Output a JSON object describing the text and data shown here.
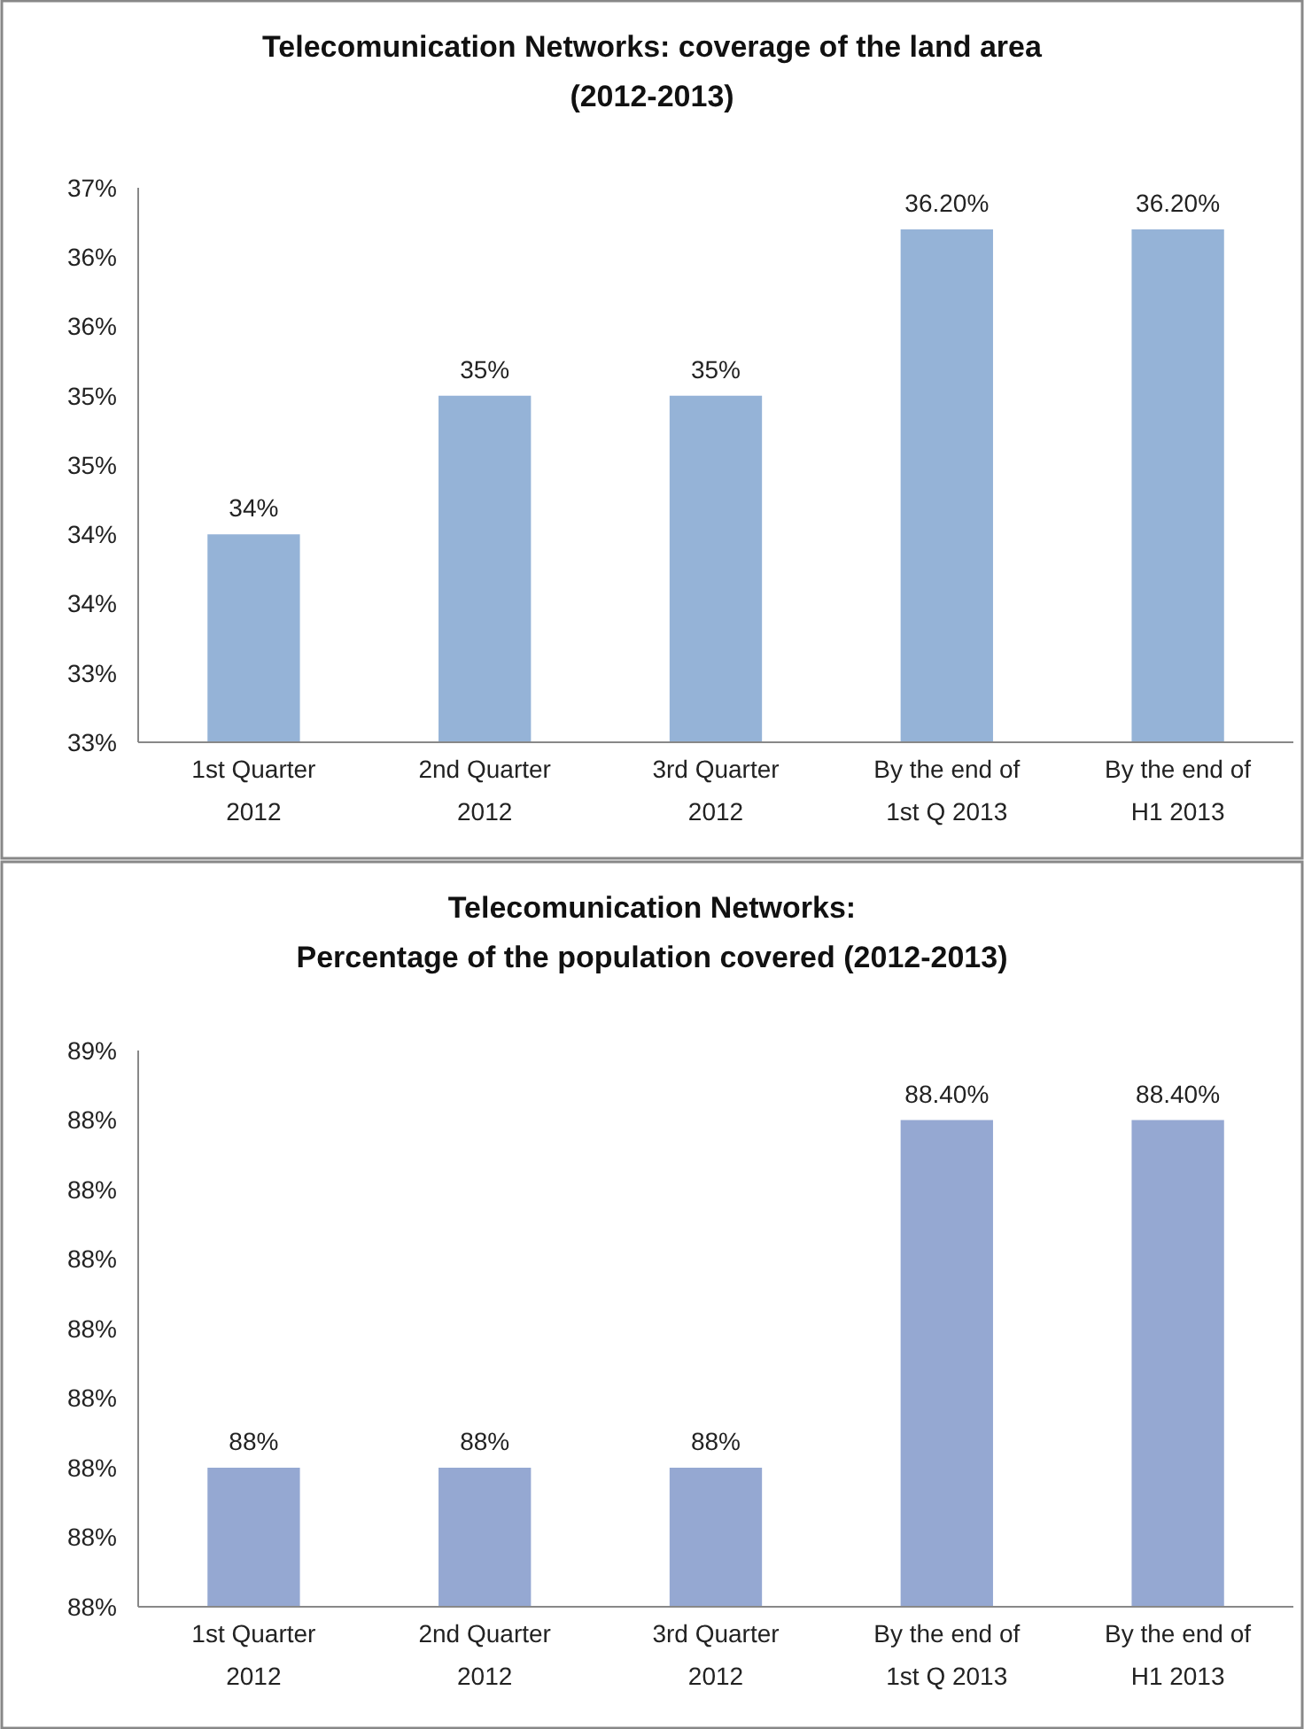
{
  "chart_data": [
    {
      "type": "bar",
      "title": "Telecomunication Networks: coverage of the land area\n(2012-2013)",
      "categories": [
        "1st Quarter\n2012",
        "2nd Quarter\n2012",
        "3rd Quarter\n2012",
        "By the end of\n1st Q 2013",
        "By the end of\nH1 2013"
      ],
      "series": [
        {
          "color": "#95b3d7",
          "values": [
            34,
            35,
            35,
            36.2,
            36.2
          ],
          "value_labels": [
            "34%",
            "35%",
            "35%",
            "36.20%",
            "36.20%"
          ]
        }
      ],
      "ylim": [
        32.5,
        36.5
      ],
      "yticks": [
        {
          "value": 32.5,
          "label": "33%"
        },
        {
          "value": 33,
          "label": "33%"
        },
        {
          "value": 33.5,
          "label": "34%"
        },
        {
          "value": 34,
          "label": "34%"
        },
        {
          "value": 34.5,
          "label": "35%"
        },
        {
          "value": 35,
          "label": "35%"
        },
        {
          "value": 35.5,
          "label": "36%"
        },
        {
          "value": 36,
          "label": "36%"
        },
        {
          "value": 36.5,
          "label": "37%"
        }
      ],
      "grid": false
    },
    {
      "type": "bar",
      "title": "Telecomunication Networks:\nPercentage of the population covered (2012-2013)",
      "categories": [
        "1st Quarter\n2012",
        "2nd Quarter\n2012",
        "3rd Quarter\n2012",
        "By the end of\n1st Q 2013",
        "By the end of\nH1 2013"
      ],
      "series": [
        {
          "color": "#95a8d2",
          "values": [
            87.9,
            87.9,
            87.9,
            88.4,
            88.4
          ],
          "value_labels": [
            "88%",
            "88%",
            "88%",
            "88.40%",
            "88.40%"
          ]
        }
      ],
      "ylim": [
        87.7,
        88.5
      ],
      "yticks": [
        {
          "value": 87.7,
          "label": "88%"
        },
        {
          "value": 87.8,
          "label": "88%"
        },
        {
          "value": 87.9,
          "label": "88%"
        },
        {
          "value": 88,
          "label": "88%"
        },
        {
          "value": 88.1,
          "label": "88%"
        },
        {
          "value": 88.2,
          "label": "88%"
        },
        {
          "value": 88.3,
          "label": "88%"
        },
        {
          "value": 88.4,
          "label": "88%"
        },
        {
          "value": 88.5,
          "label": "89%"
        }
      ],
      "grid": false
    }
  ]
}
